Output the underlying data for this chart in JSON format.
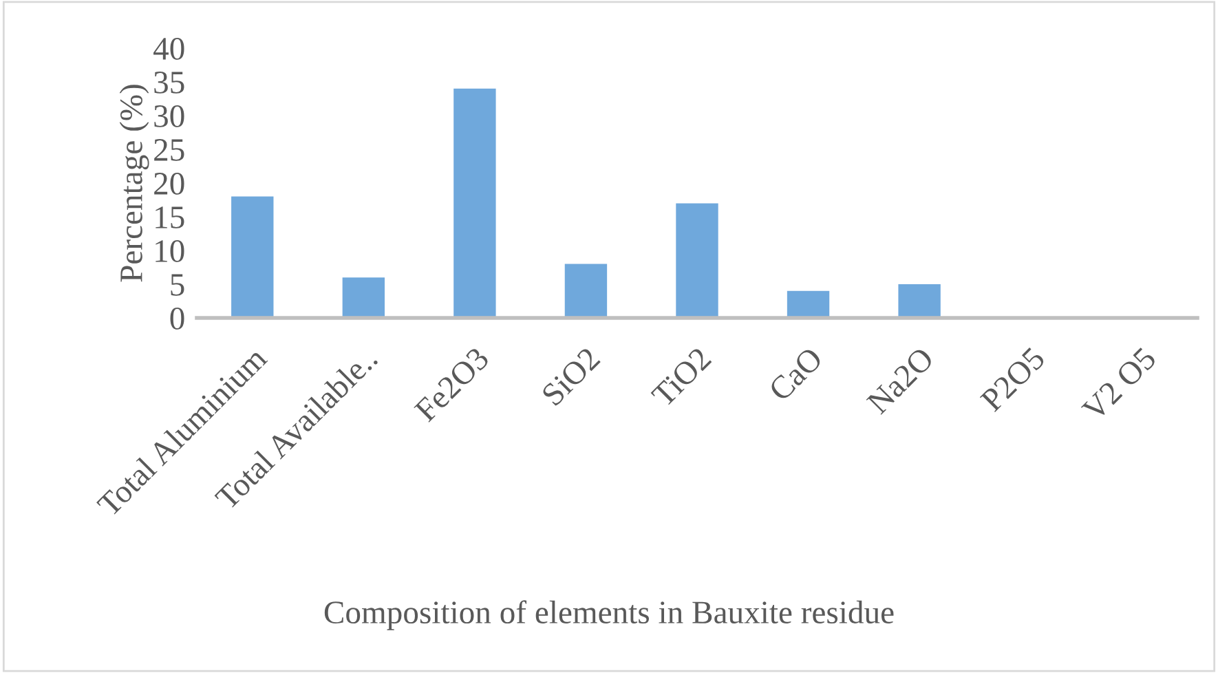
{
  "chart_data": {
    "type": "bar",
    "xlabel": "Composition of elements in Bauxite residue",
    "ylabel": "Percentage (%)",
    "categories": [
      "Total Aluminium",
      "Total Available..",
      "Fe2O3",
      "SiO2",
      "TiO2",
      "CaO",
      "Na2O",
      "P2O5",
      "V2 O5"
    ],
    "values": [
      18,
      6,
      34,
      8,
      17,
      4,
      5,
      0,
      0
    ],
    "color": "#6fa8dc",
    "ylim": [
      0,
      40
    ],
    "yticks": [
      0,
      5,
      10,
      15,
      20,
      25,
      30,
      35,
      40
    ],
    "grid": false,
    "legend": false
  }
}
